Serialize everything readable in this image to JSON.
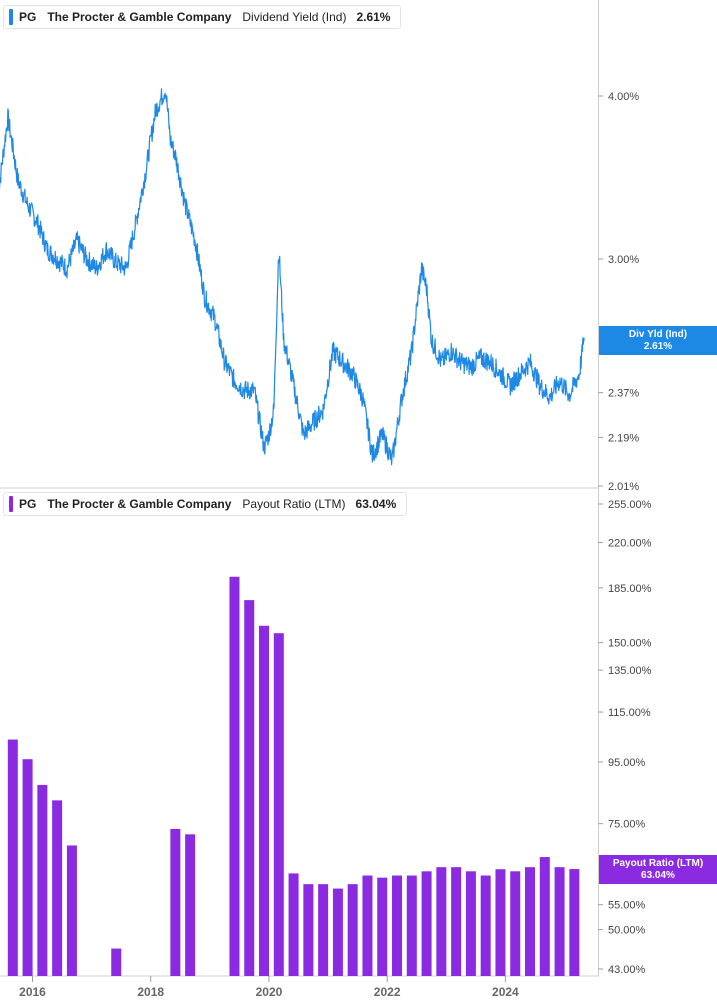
{
  "legend_top": {
    "ticker": "PG",
    "company": "The Procter & Gamble Company",
    "metric": "Dividend Yield (Ind)",
    "value": "2.61%",
    "color": "#1e88e5"
  },
  "legend_bottom": {
    "ticker": "PG",
    "company": "The Procter & Gamble Company",
    "metric": "Payout Ratio (LTM)",
    "value": "63.04%",
    "color": "#8a2be2"
  },
  "flag_top": {
    "line1": "Div Yld (Ind)",
    "line2": "2.61%"
  },
  "flag_bottom": {
    "line1": "Payout Ratio (LTM)",
    "line2": "63.04%"
  },
  "chart_data": [
    {
      "type": "line",
      "name": "Dividend Yield (Ind)",
      "color": "#1e88e5",
      "scale": "log",
      "ylim": [
        2.01,
        4.1
      ],
      "yticks": [
        "4.00%",
        "3.00%",
        "2.37%",
        "2.19%",
        "2.01%"
      ],
      "ytick_values": [
        4.0,
        3.0,
        2.37,
        2.19,
        2.01
      ],
      "x": [
        "2015-06",
        "2015-08",
        "2015-10",
        "2015-12",
        "2016-02",
        "2016-04",
        "2016-06",
        "2016-08",
        "2016-10",
        "2016-12",
        "2017-02",
        "2017-04",
        "2017-06",
        "2017-08",
        "2017-10",
        "2017-12",
        "2018-02",
        "2018-04",
        "2018-05",
        "2018-06",
        "2018-08",
        "2018-10",
        "2018-12",
        "2019-02",
        "2019-04",
        "2019-06",
        "2019-08",
        "2019-10",
        "2019-12",
        "2020-01",
        "2020-02",
        "2020-03",
        "2020-04",
        "2020-06",
        "2020-08",
        "2020-10",
        "2020-12",
        "2021-02",
        "2021-04",
        "2021-06",
        "2021-08",
        "2021-10",
        "2021-12",
        "2022-02",
        "2022-04",
        "2022-06",
        "2022-08",
        "2022-09",
        "2022-10",
        "2022-12",
        "2023-02",
        "2023-04",
        "2023-06",
        "2023-08",
        "2023-10",
        "2023-12",
        "2024-02",
        "2024-04",
        "2024-06",
        "2024-08",
        "2024-10",
        "2024-12",
        "2025-02",
        "2025-04",
        "2025-05"
      ],
      "values": [
        3.35,
        3.85,
        3.45,
        3.3,
        3.2,
        3.05,
        3.0,
        2.95,
        3.1,
        3.0,
        2.95,
        3.05,
        2.98,
        2.95,
        3.2,
        3.5,
        3.9,
        4.05,
        3.7,
        3.6,
        3.3,
        3.1,
        2.8,
        2.7,
        2.5,
        2.42,
        2.38,
        2.38,
        2.15,
        2.2,
        2.3,
        3.05,
        2.6,
        2.4,
        2.2,
        2.25,
        2.3,
        2.55,
        2.5,
        2.45,
        2.35,
        2.12,
        2.2,
        2.1,
        2.35,
        2.55,
        2.95,
        2.85,
        2.6,
        2.5,
        2.55,
        2.5,
        2.48,
        2.52,
        2.5,
        2.45,
        2.4,
        2.45,
        2.5,
        2.4,
        2.35,
        2.42,
        2.36,
        2.45,
        2.61
      ]
    },
    {
      "type": "bar",
      "name": "Payout Ratio (LTM)",
      "color": "#8a2be2",
      "scale": "log",
      "ylim": [
        43.0,
        255.0
      ],
      "yticks": [
        "255.00%",
        "220.00%",
        "185.00%",
        "150.00%",
        "135.00%",
        "115.00%",
        "95.00%",
        "75.00%",
        "55.00%",
        "50.00%",
        "43.00%"
      ],
      "ytick_values": [
        255,
        220,
        185,
        150,
        135,
        115,
        95,
        75,
        55,
        50,
        43
      ],
      "x": [
        "2015-09",
        "2015-12",
        "2016-03",
        "2016-06",
        "2016-09",
        "2016-12",
        "2017-03",
        "2017-06",
        "2017-09",
        "2017-12",
        "2018-03",
        "2018-06",
        "2018-09",
        "2018-12",
        "2019-03",
        "2019-06",
        "2019-09",
        "2019-12",
        "2020-03",
        "2020-06",
        "2020-09",
        "2020-12",
        "2021-03",
        "2021-06",
        "2021-09",
        "2021-12",
        "2022-03",
        "2022-06",
        "2022-09",
        "2022-12",
        "2023-03",
        "2023-06",
        "2023-09",
        "2023-12",
        "2024-03",
        "2024-06",
        "2024-09",
        "2024-12",
        "2025-03"
      ],
      "values": [
        103.5,
        96.0,
        87.0,
        82.0,
        69.0,
        null,
        null,
        46.5,
        null,
        null,
        null,
        73.5,
        72.0,
        null,
        null,
        193.0,
        176.5,
        160.0,
        155.5,
        62.0,
        59.5,
        59.5,
        58.5,
        59.5,
        61.5,
        61.0,
        61.5,
        61.5,
        62.5,
        63.5,
        63.5,
        62.5,
        61.5,
        63.0,
        62.5,
        63.5,
        66.0,
        63.5,
        63.04
      ],
      "xticks": [
        "2016",
        "2018",
        "2020",
        "2022",
        "2024"
      ],
      "xtick_dates": [
        "2016-01",
        "2018-01",
        "2020-01",
        "2022-01",
        "2024-01"
      ]
    }
  ]
}
